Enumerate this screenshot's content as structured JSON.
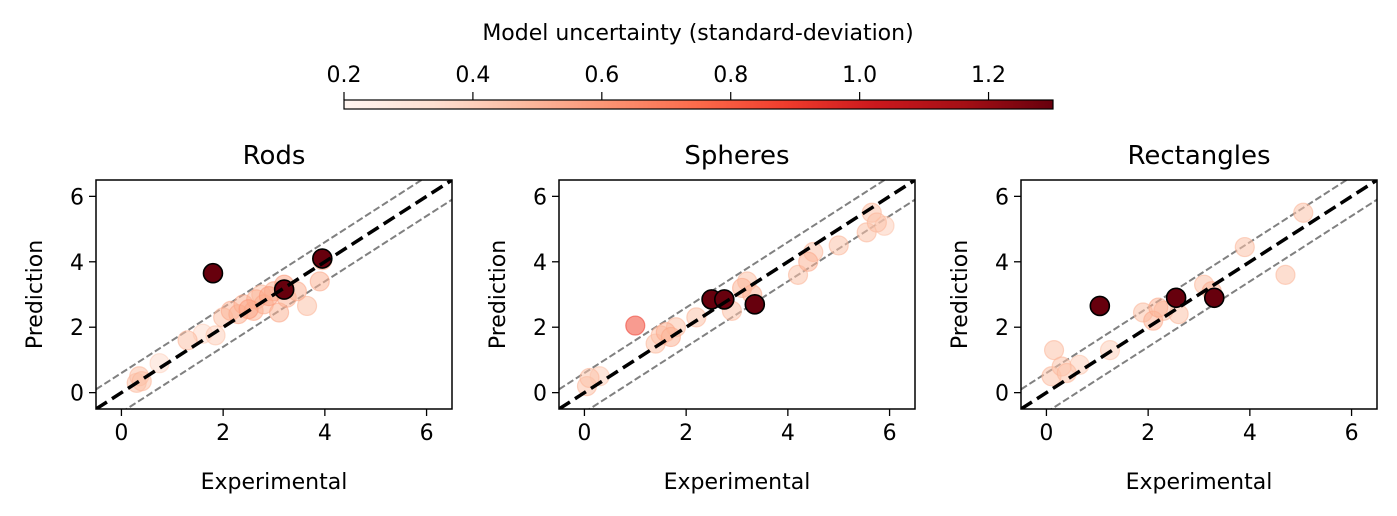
{
  "colorbar": {
    "label": "Model uncertainty (standard-deviation)",
    "range": [
      0.2,
      1.3
    ],
    "ticks": [
      0.2,
      0.4,
      0.6,
      0.8,
      1.0,
      1.2
    ],
    "tick_labels": [
      "0.2",
      "0.4",
      "0.6",
      "0.8",
      "1.0",
      "1.2"
    ],
    "colormap": "Reds",
    "color_stops": [
      "#fff5f0",
      "#fee0d2",
      "#fcbba1",
      "#fc9272",
      "#fb6a4a",
      "#ef3b2c",
      "#cb181d",
      "#a50f15",
      "#67000d"
    ]
  },
  "chart_data": [
    {
      "type": "scatter",
      "title": "Rods",
      "xlabel": "Experimental",
      "ylabel": "Prediction",
      "xlim": [
        -0.5,
        6.5
      ],
      "ylim": [
        -0.5,
        6.5
      ],
      "xticks": [
        0,
        2,
        4,
        6
      ],
      "yticks": [
        0,
        2,
        4,
        6
      ],
      "reference_line": {
        "style": "black dashed",
        "slope": 1,
        "intercept": 0
      },
      "band_lines": {
        "style": "grey dashed",
        "offsets": [
          -0.6,
          0.6
        ]
      },
      "points": [
        {
          "x": 0.3,
          "y": 0.3,
          "s": 0.45
        },
        {
          "x": 0.35,
          "y": 0.5,
          "s": 0.45
        },
        {
          "x": 0.4,
          "y": 0.35,
          "s": 0.45
        },
        {
          "x": 0.75,
          "y": 0.9,
          "s": 0.35
        },
        {
          "x": 1.3,
          "y": 1.6,
          "s": 0.45
        },
        {
          "x": 1.6,
          "y": 1.8,
          "s": 0.35
        },
        {
          "x": 1.85,
          "y": 1.75,
          "s": 0.4
        },
        {
          "x": 2.0,
          "y": 2.3,
          "s": 0.45
        },
        {
          "x": 2.15,
          "y": 2.5,
          "s": 0.5
        },
        {
          "x": 2.3,
          "y": 2.4,
          "s": 0.5
        },
        {
          "x": 2.4,
          "y": 2.7,
          "s": 0.5
        },
        {
          "x": 2.5,
          "y": 2.55,
          "s": 0.55
        },
        {
          "x": 2.6,
          "y": 2.5,
          "s": 0.5
        },
        {
          "x": 2.65,
          "y": 2.85,
          "s": 0.5
        },
        {
          "x": 2.75,
          "y": 3.0,
          "s": 0.45
        },
        {
          "x": 2.8,
          "y": 2.7,
          "s": 0.5
        },
        {
          "x": 2.9,
          "y": 2.95,
          "s": 0.55
        },
        {
          "x": 3.0,
          "y": 3.1,
          "s": 0.5
        },
        {
          "x": 3.1,
          "y": 2.45,
          "s": 0.5
        },
        {
          "x": 3.2,
          "y": 3.3,
          "s": 0.55
        },
        {
          "x": 3.25,
          "y": 2.9,
          "s": 0.5
        },
        {
          "x": 3.45,
          "y": 3.1,
          "s": 0.5
        },
        {
          "x": 3.65,
          "y": 2.65,
          "s": 0.45
        },
        {
          "x": 3.9,
          "y": 3.4,
          "s": 0.5
        },
        {
          "x": 3.95,
          "y": 4.05,
          "s": 0.5
        },
        {
          "x": 1.8,
          "y": 3.65,
          "s": 1.3
        },
        {
          "x": 3.2,
          "y": 3.15,
          "s": 1.3
        },
        {
          "x": 3.95,
          "y": 4.1,
          "s": 1.3
        }
      ]
    },
    {
      "type": "scatter",
      "title": "Spheres",
      "xlabel": "Experimental",
      "ylabel": "Prediction",
      "xlim": [
        -0.5,
        6.5
      ],
      "ylim": [
        -0.5,
        6.5
      ],
      "xticks": [
        0,
        2,
        4,
        6
      ],
      "yticks": [
        0,
        2,
        4,
        6
      ],
      "reference_line": {
        "style": "black dashed",
        "slope": 1,
        "intercept": 0
      },
      "band_lines": {
        "style": "grey dashed",
        "offsets": [
          -0.6,
          0.6
        ]
      },
      "points": [
        {
          "x": 0.05,
          "y": 0.2,
          "s": 0.45
        },
        {
          "x": 0.1,
          "y": 0.45,
          "s": 0.45
        },
        {
          "x": 0.3,
          "y": 0.5,
          "s": 0.4
        },
        {
          "x": 1.0,
          "y": 2.05,
          "s": 0.85
        },
        {
          "x": 1.4,
          "y": 1.5,
          "s": 0.45
        },
        {
          "x": 1.5,
          "y": 1.75,
          "s": 0.45
        },
        {
          "x": 1.6,
          "y": 1.85,
          "s": 0.5
        },
        {
          "x": 1.7,
          "y": 1.7,
          "s": 0.5
        },
        {
          "x": 1.8,
          "y": 2.0,
          "s": 0.45
        },
        {
          "x": 2.2,
          "y": 2.3,
          "s": 0.45
        },
        {
          "x": 2.9,
          "y": 2.5,
          "s": 0.45
        },
        {
          "x": 3.1,
          "y": 3.2,
          "s": 0.5
        },
        {
          "x": 3.2,
          "y": 3.4,
          "s": 0.45
        },
        {
          "x": 3.3,
          "y": 3.0,
          "s": 0.5
        },
        {
          "x": 4.2,
          "y": 3.6,
          "s": 0.45
        },
        {
          "x": 4.4,
          "y": 4.0,
          "s": 0.5
        },
        {
          "x": 4.5,
          "y": 4.3,
          "s": 0.45
        },
        {
          "x": 5.0,
          "y": 4.5,
          "s": 0.45
        },
        {
          "x": 5.55,
          "y": 4.9,
          "s": 0.45
        },
        {
          "x": 5.65,
          "y": 5.5,
          "s": 0.45
        },
        {
          "x": 5.75,
          "y": 5.2,
          "s": 0.45
        },
        {
          "x": 5.9,
          "y": 5.1,
          "s": 0.4
        },
        {
          "x": 2.5,
          "y": 2.85,
          "s": 1.3
        },
        {
          "x": 2.75,
          "y": 2.85,
          "s": 1.3
        },
        {
          "x": 3.35,
          "y": 2.7,
          "s": 1.3
        }
      ]
    },
    {
      "type": "scatter",
      "title": "Rectangles",
      "xlabel": "Experimental",
      "ylabel": "Prediction",
      "xlim": [
        -0.5,
        6.5
      ],
      "ylim": [
        -0.5,
        6.5
      ],
      "xticks": [
        0,
        2,
        4,
        6
      ],
      "yticks": [
        0,
        2,
        4,
        6
      ],
      "reference_line": {
        "style": "black dashed",
        "slope": 1,
        "intercept": 0
      },
      "band_lines": {
        "style": "grey dashed",
        "offsets": [
          -0.6,
          0.6
        ]
      },
      "points": [
        {
          "x": 0.1,
          "y": 0.5,
          "s": 0.45
        },
        {
          "x": 0.15,
          "y": 1.3,
          "s": 0.45
        },
        {
          "x": 0.3,
          "y": 0.8,
          "s": 0.45
        },
        {
          "x": 0.4,
          "y": 0.6,
          "s": 0.45
        },
        {
          "x": 0.65,
          "y": 0.85,
          "s": 0.4
        },
        {
          "x": 1.25,
          "y": 1.3,
          "s": 0.4
        },
        {
          "x": 1.9,
          "y": 2.45,
          "s": 0.45
        },
        {
          "x": 2.1,
          "y": 2.2,
          "s": 0.5
        },
        {
          "x": 2.2,
          "y": 2.6,
          "s": 0.5
        },
        {
          "x": 2.3,
          "y": 2.5,
          "s": 0.45
        },
        {
          "x": 2.6,
          "y": 2.4,
          "s": 0.45
        },
        {
          "x": 3.1,
          "y": 3.3,
          "s": 0.45
        },
        {
          "x": 3.25,
          "y": 3.1,
          "s": 0.5
        },
        {
          "x": 3.9,
          "y": 4.45,
          "s": 0.45
        },
        {
          "x": 4.7,
          "y": 3.6,
          "s": 0.45
        },
        {
          "x": 5.05,
          "y": 5.5,
          "s": 0.45
        },
        {
          "x": 1.05,
          "y": 2.65,
          "s": 1.3
        },
        {
          "x": 2.55,
          "y": 2.9,
          "s": 1.3
        },
        {
          "x": 3.3,
          "y": 2.9,
          "s": 1.3
        }
      ]
    }
  ]
}
